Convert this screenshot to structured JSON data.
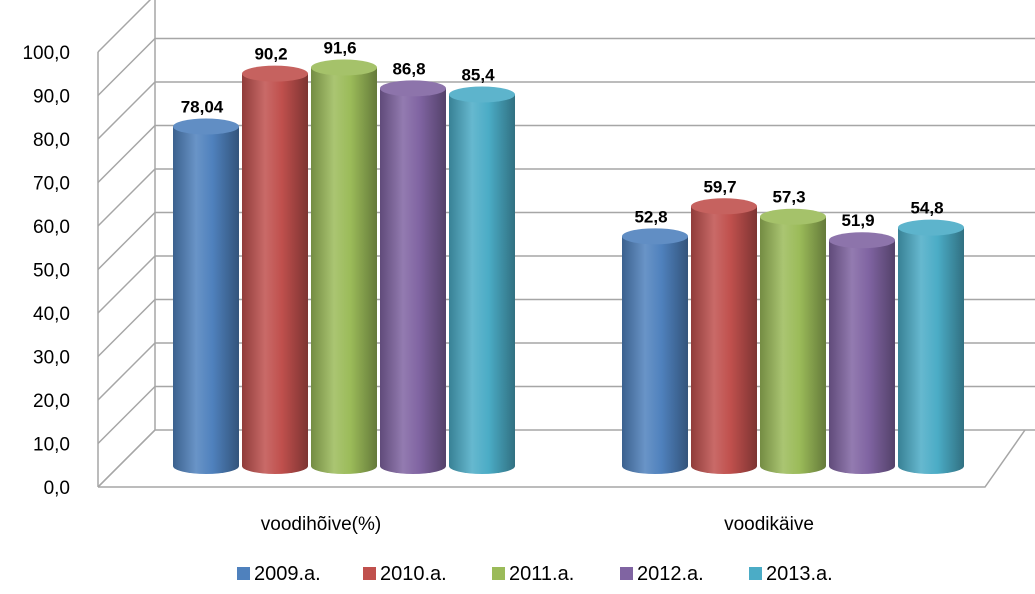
{
  "chart_data": {
    "type": "bar",
    "style": "3d-cylinder",
    "categories": [
      "voodihõive(%)",
      "voodikäive"
    ],
    "series": [
      {
        "name": "2009.a.",
        "values": [
          78.04,
          52.8
        ],
        "labels": [
          "78,04",
          "52,8"
        ],
        "color": "#4F81BD"
      },
      {
        "name": "2010.a.",
        "values": [
          90.2,
          59.7
        ],
        "labels": [
          "90,2",
          "59,7"
        ],
        "color": "#C0504D"
      },
      {
        "name": "2011.a.",
        "values": [
          91.6,
          57.3
        ],
        "labels": [
          "91,6",
          "57,3"
        ],
        "color": "#9BBB59"
      },
      {
        "name": "2012.a.",
        "values": [
          86.8,
          51.9
        ],
        "labels": [
          "86,8",
          "51,9"
        ],
        "color": "#8064A2"
      },
      {
        "name": "2013.a.",
        "values": [
          85.4,
          54.8
        ],
        "labels": [
          "85,4",
          "54,8"
        ],
        "color": "#4BACC6"
      }
    ],
    "yticks": [
      0,
      10,
      20,
      30,
      40,
      50,
      60,
      70,
      80,
      90,
      100
    ],
    "ytick_labels": [
      "0,0",
      "10,0",
      "20,0",
      "30,0",
      "40,0",
      "50,0",
      "60,0",
      "70,0",
      "80,0",
      "90,0",
      "100,0"
    ],
    "ylim": [
      0,
      100
    ],
    "grid": true,
    "legend_position": "bottom",
    "title": "",
    "xlabel": "",
    "ylabel": ""
  }
}
